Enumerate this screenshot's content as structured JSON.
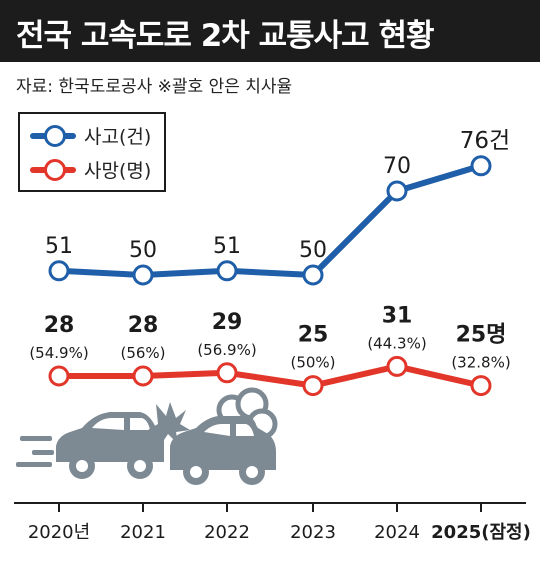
{
  "header": {
    "title": "전국 고속도로 2차 교통사고 현황",
    "source": "자료: 한국도로공사  ※괄호 안은 치사율"
  },
  "legend": {
    "accidents": "사고(건)",
    "deaths": "사망(명)"
  },
  "colors": {
    "accidents": "#1f5ea8",
    "deaths": "#e3362b",
    "header_bg": "#1c1c1c",
    "car": "#7d8a93"
  },
  "chart_data": {
    "type": "line",
    "x": [
      "2020년",
      "2021",
      "2022",
      "2023",
      "2024",
      "2025(잠정)"
    ],
    "series": [
      {
        "name": "사고(건)",
        "values": [
          51,
          50,
          51,
          50,
          70,
          76
        ],
        "labels": [
          "51",
          "50",
          "51",
          "50",
          "70",
          "76건"
        ]
      },
      {
        "name": "사망(명)",
        "values": [
          28,
          28,
          29,
          25,
          31,
          25
        ],
        "labels": [
          "28",
          "28",
          "29",
          "25",
          "31",
          "25명"
        ],
        "fatality_labels": [
          "(54.9%)",
          "(56%)",
          "(56.9%)",
          "(50%)",
          "(44.3%)",
          "(32.8%)"
        ]
      }
    ]
  }
}
